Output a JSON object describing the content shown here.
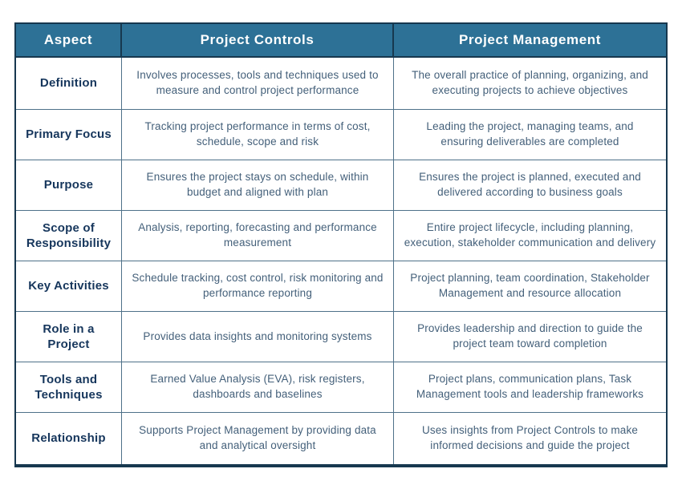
{
  "colors": {
    "header_background": "#2d7196",
    "header_text": "#ffffff",
    "outer_border": "#17384f",
    "grid_line": "#4e7189",
    "aspect_label_text": "#16365c",
    "body_text": "#44607a"
  },
  "table": {
    "headers": [
      "Aspect",
      "Project Controls",
      "Project Management"
    ],
    "rows": [
      {
        "aspect": "Definition",
        "controls": "Involves processes, tools and techniques used to measure and control project performance",
        "management": "The overall practice of planning, organizing, and executing projects to achieve objectives"
      },
      {
        "aspect": "Primary Focus",
        "controls": "Tracking project performance in terms of cost, schedule, scope and risk",
        "management": "Leading the project, managing teams, and ensuring deliverables are completed"
      },
      {
        "aspect": "Purpose",
        "controls": "Ensures the project stays on schedule, within budget and aligned with plan",
        "management": "Ensures the project is planned, executed and delivered according to business goals"
      },
      {
        "aspect": "Scope of Responsibility",
        "controls": "Analysis, reporting, forecasting and performance measurement",
        "management": "Entire project lifecycle, including planning, execution, stakeholder communication and delivery"
      },
      {
        "aspect": "Key Activities",
        "controls": "Schedule tracking, cost control, risk monitoring and performance reporting",
        "management": "Project planning, team coordination, Stakeholder Management and resource allocation"
      },
      {
        "aspect": "Role in a Project",
        "controls": "Provides data insights and monitoring systems",
        "management": "Provides leadership and direction to guide the project team toward completion"
      },
      {
        "aspect": "Tools and Techniques",
        "controls": "Earned Value Analysis (EVA), risk registers, dashboards and baselines",
        "management": "Project plans, communication plans, Task Management tools and leadership frameworks"
      },
      {
        "aspect": "Relationship",
        "controls": "Supports Project Management by providing data and analytical oversight",
        "management": "Uses insights from Project Controls to make informed decisions and guide the project"
      }
    ]
  }
}
